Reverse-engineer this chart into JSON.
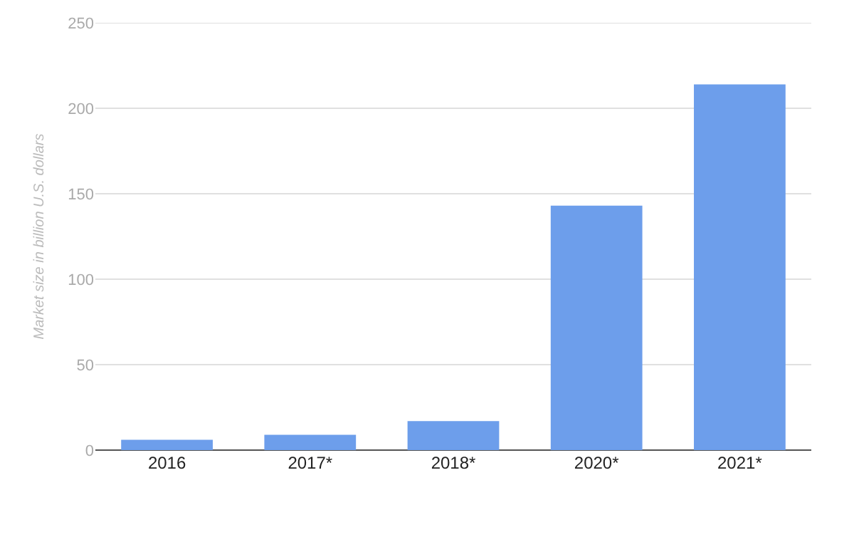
{
  "chart_data": {
    "type": "bar",
    "ylabel": "Market size in billion U.S. dollars",
    "categories": [
      "2016",
      "2017*",
      "2018*",
      "2020*",
      "2021*"
    ],
    "values": [
      6,
      9,
      17,
      143,
      214
    ],
    "color": "#6d9eeb",
    "ylim": [
      0,
      250
    ],
    "yticks": [
      0,
      50,
      100,
      150,
      200,
      250
    ],
    "grid": "y",
    "legend": false
  }
}
